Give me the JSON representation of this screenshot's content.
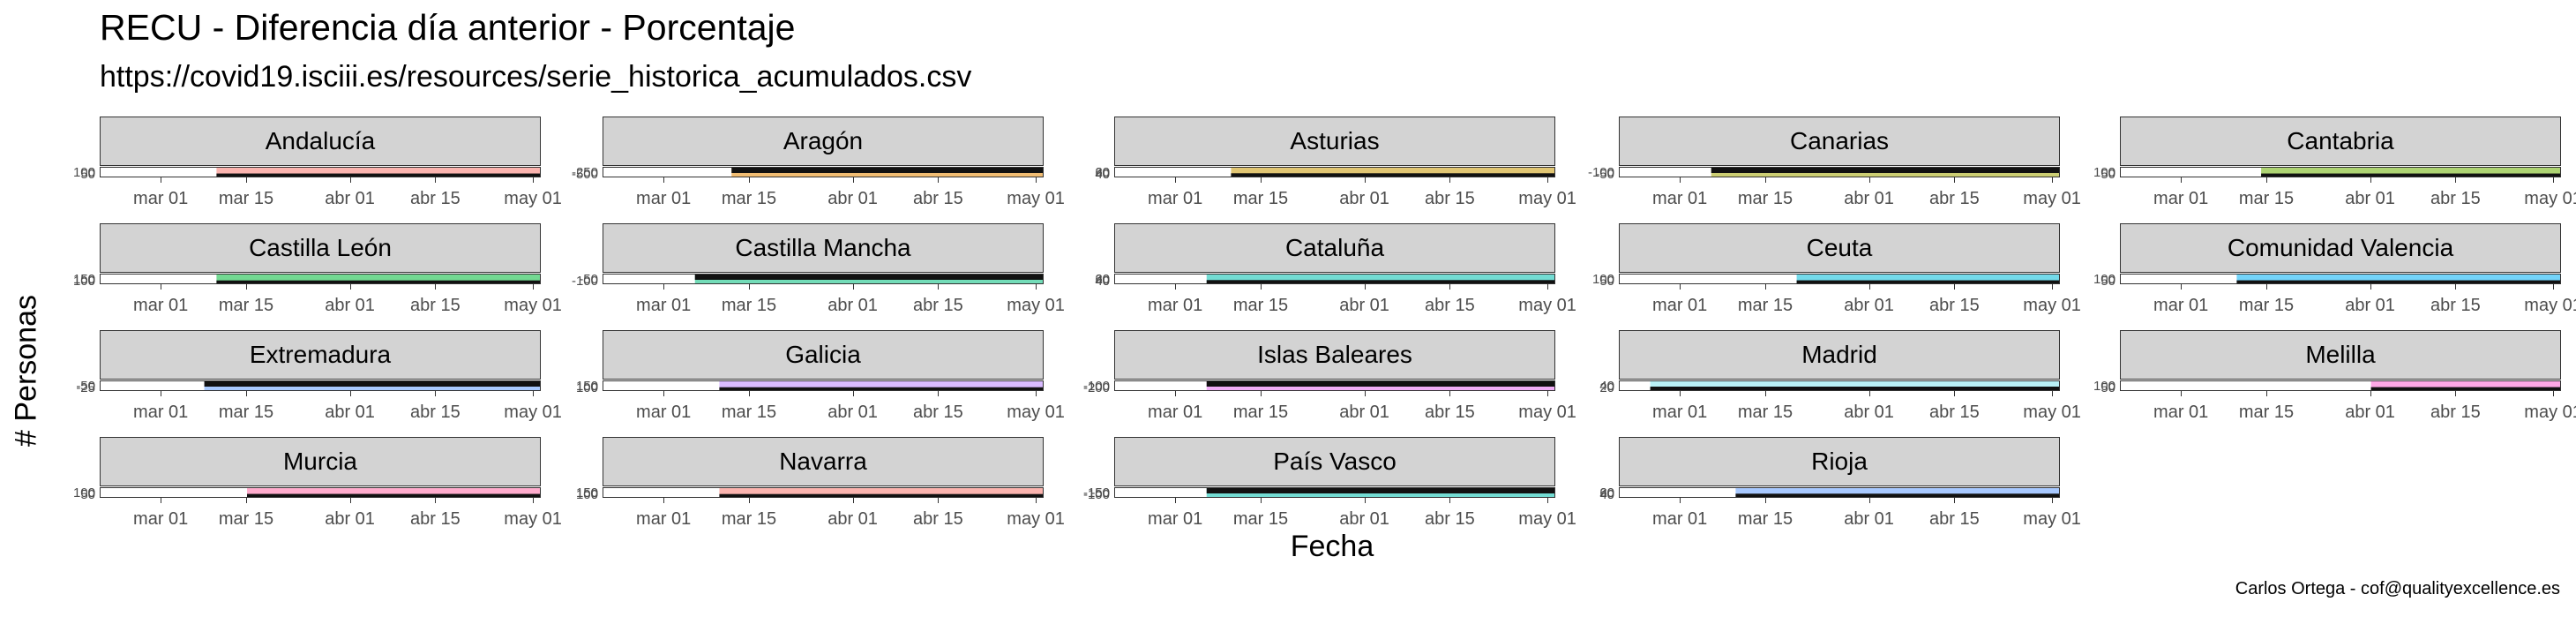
{
  "chart_data": {
    "type": "area",
    "title": "RECU - Diferencia día anterior - Porcentaje",
    "subtitle": "https://covid19.isciii.es/resources/serie_historica_acumulados.csv",
    "xlabel": "Fecha",
    "ylabel": "# Personas",
    "caption": "Carlos Ortega - cof@qualityexcellence.es",
    "x_tick_labels": [
      "mar 01",
      "mar 15",
      "abr 01",
      "abr 15",
      "may 01"
    ],
    "x_tick_dates": [
      "2020-03-01",
      "2020-03-15",
      "2020-04-01",
      "2020-04-15",
      "2020-05-01"
    ],
    "xlim": [
      "2020-02-20",
      "2020-05-02"
    ],
    "facet_columns": 5,
    "facets": [
      {
        "name": "Andalucía",
        "yticks": [
          "100",
          "50",
          "0"
        ],
        "ylim": [
          -5,
          110
        ],
        "data_start": "2020-03-10",
        "color": "#f8766d"
      },
      {
        "name": "Aragón",
        "yticks": [
          "-250",
          "-500"
        ],
        "ylim": [
          -520,
          20
        ],
        "data_start": "2020-03-12",
        "color": "#e58700"
      },
      {
        "name": "Asturias",
        "yticks": [
          "60",
          "40",
          "20",
          "0"
        ],
        "ylim": [
          -5,
          65
        ],
        "data_start": "2020-03-10",
        "color": "#c99800"
      },
      {
        "name": "Canarias",
        "yticks": [
          "0",
          "-50",
          "-100"
        ],
        "ylim": [
          -110,
          10
        ],
        "data_start": "2020-03-06",
        "color": "#a3a500"
      },
      {
        "name": "Cantabria",
        "yticks": [
          "100",
          "50",
          "0"
        ],
        "ylim": [
          -5,
          110
        ],
        "data_start": "2020-03-14",
        "color": "#6bb100"
      },
      {
        "name": "Castilla León",
        "yticks": [
          "150",
          "100",
          "50",
          "0"
        ],
        "ylim": [
          -5,
          160
        ],
        "data_start": "2020-03-10",
        "color": "#00ba38"
      },
      {
        "name": "Castilla Mancha",
        "yticks": [
          "-50",
          "-100"
        ],
        "ylim": [
          -110,
          10
        ],
        "data_start": "2020-03-06",
        "color": "#00bf7d"
      },
      {
        "name": "Cataluña",
        "yticks": [
          "60",
          "40",
          "20",
          "0"
        ],
        "ylim": [
          -5,
          65
        ],
        "data_start": "2020-03-06",
        "color": "#00c0af"
      },
      {
        "name": "Ceuta",
        "yticks": [
          "100",
          "50",
          "0"
        ],
        "ylim": [
          -5,
          110
        ],
        "data_start": "2020-03-20",
        "color": "#00bcd8"
      },
      {
        "name": "Comunidad Valencia",
        "yticks": [
          "100",
          "50",
          "0"
        ],
        "ylim": [
          -5,
          110
        ],
        "data_start": "2020-03-10",
        "color": "#00b0f6"
      },
      {
        "name": "Extremadura",
        "yticks": [
          "0",
          "-25",
          "-50"
        ],
        "ylim": [
          -55,
          5
        ],
        "data_start": "2020-03-08",
        "color": "#619cff"
      },
      {
        "name": "Galicia",
        "yticks": [
          "150",
          "100",
          "50",
          "0"
        ],
        "ylim": [
          -5,
          160
        ],
        "data_start": "2020-03-10",
        "color": "#b983ff"
      },
      {
        "name": "Islas Baleares",
        "yticks": [
          "-100",
          "-200"
        ],
        "ylim": [
          -210,
          10
        ],
        "data_start": "2020-03-06",
        "color": "#e76bf3"
      },
      {
        "name": "Madrid",
        "yticks": [
          "40",
          "20",
          "0"
        ],
        "ylim": [
          -5,
          45
        ],
        "data_start": "2020-02-25",
        "color": "#7fe5ee"
      },
      {
        "name": "Melilla",
        "yticks": [
          "100",
          "50",
          "0"
        ],
        "ylim": [
          -5,
          110
        ],
        "data_start": "2020-04-01",
        "color": "#fd61d1"
      },
      {
        "name": "Murcia",
        "yticks": [
          "100",
          "50",
          "0"
        ],
        "ylim": [
          -5,
          110
        ],
        "data_start": "2020-03-15",
        "color": "#ff67a4"
      },
      {
        "name": "Navarra",
        "yticks": [
          "150",
          "100",
          "50",
          "0"
        ],
        "ylim": [
          -5,
          160
        ],
        "data_start": "2020-03-10",
        "color": "#f8766d"
      },
      {
        "name": "País Vasco",
        "yticks": [
          "-50",
          "-100",
          "-150"
        ],
        "ylim": [
          -160,
          10
        ],
        "data_start": "2020-03-06",
        "color": "#00c0af"
      },
      {
        "name": "Rioja",
        "yticks": [
          "60",
          "40",
          "20",
          "0"
        ],
        "ylim": [
          -5,
          65
        ],
        "data_start": "2020-03-10",
        "color": "#619cff"
      }
    ]
  }
}
